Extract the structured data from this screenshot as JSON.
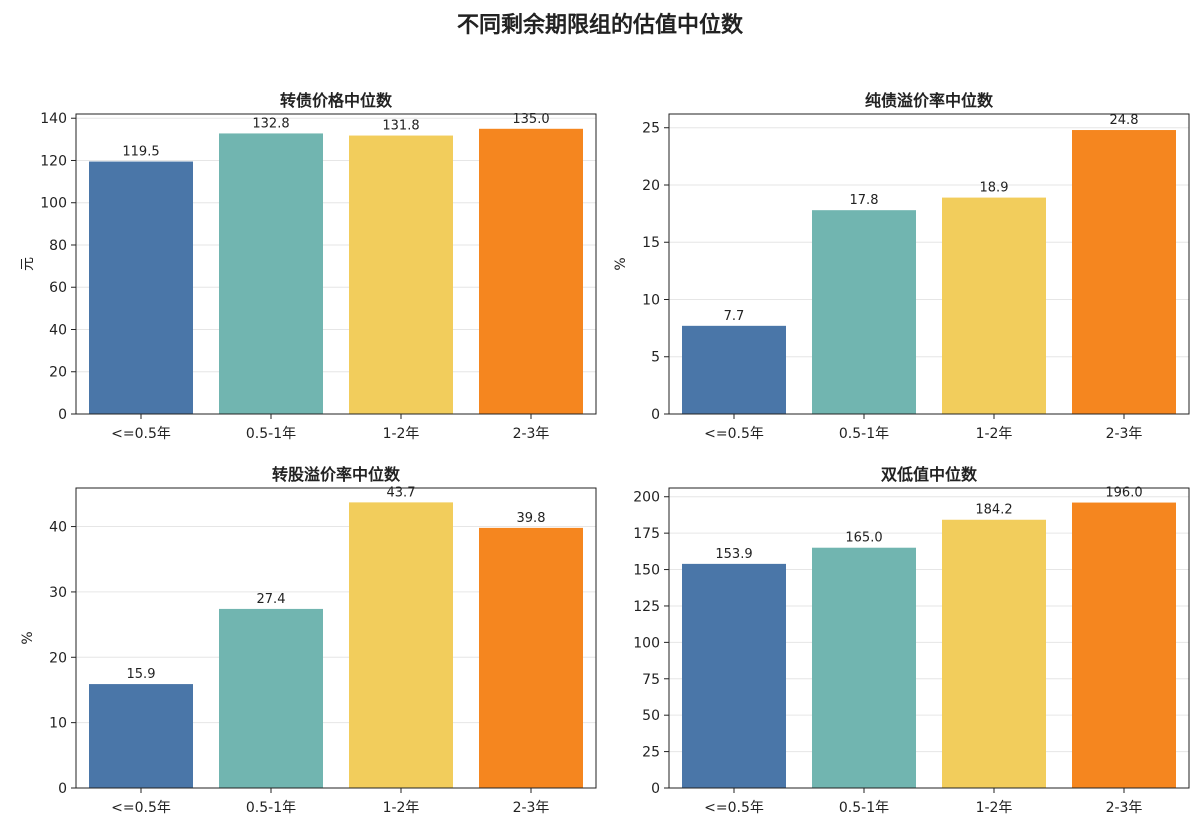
{
  "suptitle": "不同剩余期限组的估值中位数",
  "chart_data": [
    {
      "type": "bar",
      "title": "转债价格中位数",
      "ylabel": "元",
      "categories": [
        "<=0.5年",
        "0.5-1年",
        "1-2年",
        "2-3年"
      ],
      "values": [
        119.5,
        132.8,
        131.8,
        135.0
      ],
      "colors": [
        "#4a76a8",
        "#71b5b0",
        "#f2cd5c",
        "#f5861f"
      ],
      "ylim": [
        0,
        142
      ],
      "yticks": [
        0,
        20,
        40,
        60,
        80,
        100,
        120,
        140
      ],
      "grid": "y"
    },
    {
      "type": "bar",
      "title": "纯债溢价率中位数",
      "ylabel": "%",
      "categories": [
        "<=0.5年",
        "0.5-1年",
        "1-2年",
        "2-3年"
      ],
      "values": [
        7.7,
        17.8,
        18.9,
        24.8
      ],
      "colors": [
        "#4a76a8",
        "#71b5b0",
        "#f2cd5c",
        "#f5861f"
      ],
      "ylim": [
        0,
        26.2
      ],
      "yticks": [
        0,
        5,
        10,
        15,
        20,
        25
      ],
      "grid": "y"
    },
    {
      "type": "bar",
      "title": "转股溢价率中位数",
      "ylabel": "%",
      "categories": [
        "<=0.5年",
        "0.5-1年",
        "1-2年",
        "2-3年"
      ],
      "values": [
        15.9,
        27.4,
        43.7,
        39.8
      ],
      "colors": [
        "#4a76a8",
        "#71b5b0",
        "#f2cd5c",
        "#f5861f"
      ],
      "ylim": [
        0,
        45.9
      ],
      "yticks": [
        0,
        10,
        20,
        30,
        40
      ],
      "grid": "y"
    },
    {
      "type": "bar",
      "title": "双低值中位数",
      "ylabel": "",
      "categories": [
        "<=0.5年",
        "0.5-1年",
        "1-2年",
        "2-3年"
      ],
      "values": [
        153.9,
        165.0,
        184.2,
        196.0
      ],
      "colors": [
        "#4a76a8",
        "#71b5b0",
        "#f2cd5c",
        "#f5861f"
      ],
      "ylim": [
        0,
        206
      ],
      "yticks": [
        0,
        25,
        50,
        75,
        100,
        125,
        150,
        175,
        200
      ],
      "grid": "y"
    }
  ]
}
